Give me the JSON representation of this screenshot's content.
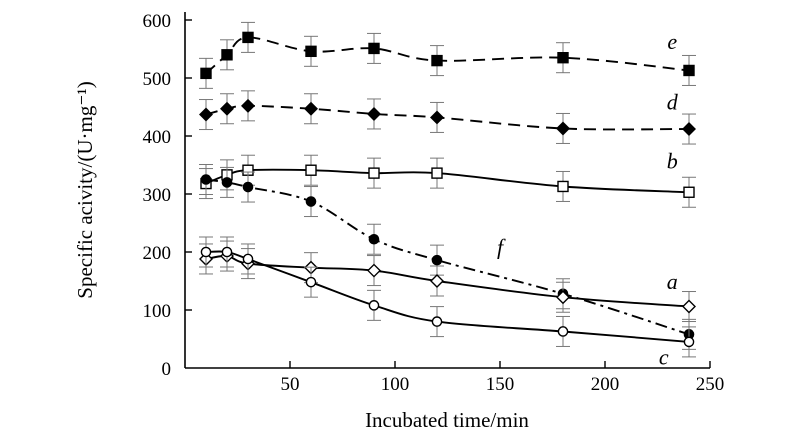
{
  "chart_data": {
    "type": "line",
    "title": "",
    "xlabel": "Incubated time/min",
    "ylabel": "Specific acivity/(U·mg⁻¹)",
    "xlim": [
      0,
      250
    ],
    "ylim": [
      0,
      600
    ],
    "xticks": [
      50,
      100,
      150,
      200,
      250
    ],
    "yticks": [
      0,
      100,
      200,
      300,
      400,
      500,
      600
    ],
    "grid": false,
    "series": [
      {
        "name": "e",
        "marker": "filled-square",
        "line": "dashed",
        "x": [
          10,
          20,
          30,
          60,
          90,
          120,
          180,
          240
        ],
        "values": [
          508,
          540,
          570,
          546,
          551,
          530,
          535,
          513
        ],
        "label_at": [
          232,
          562
        ]
      },
      {
        "name": "d",
        "marker": "filled-diamond",
        "line": "dashed",
        "x": [
          10,
          20,
          30,
          60,
          90,
          120,
          180,
          240
        ],
        "values": [
          437,
          447,
          452,
          447,
          438,
          432,
          413,
          412
        ],
        "label_at": [
          232,
          458
        ]
      },
      {
        "name": "b",
        "marker": "open-square",
        "line": "solid",
        "x": [
          10,
          20,
          30,
          60,
          90,
          120,
          180,
          240
        ],
        "values": [
          318,
          333,
          341,
          341,
          336,
          336,
          313,
          303
        ],
        "label_at": [
          232,
          356
        ]
      },
      {
        "name": "f",
        "marker": "filled-circle",
        "line": "dashdot",
        "x": [
          10,
          20,
          30,
          60,
          90,
          120,
          180,
          240
        ],
        "values": [
          325,
          320,
          312,
          287,
          222,
          186,
          128,
          58
        ],
        "label_at": [
          150,
          208
        ]
      },
      {
        "name": "a",
        "marker": "open-diamond",
        "line": "solid",
        "x": [
          10,
          20,
          30,
          60,
          90,
          120,
          180,
          240
        ],
        "values": [
          188,
          193,
          180,
          173,
          168,
          150,
          122,
          106
        ],
        "label_at": [
          232,
          148
        ]
      },
      {
        "name": "c",
        "marker": "open-circle",
        "line": "solid",
        "x": [
          10,
          20,
          30,
          60,
          90,
          120,
          180,
          240
        ],
        "values": [
          200,
          200,
          188,
          148,
          108,
          80,
          63,
          45
        ],
        "label_at": [
          228,
          18
        ]
      }
    ]
  }
}
